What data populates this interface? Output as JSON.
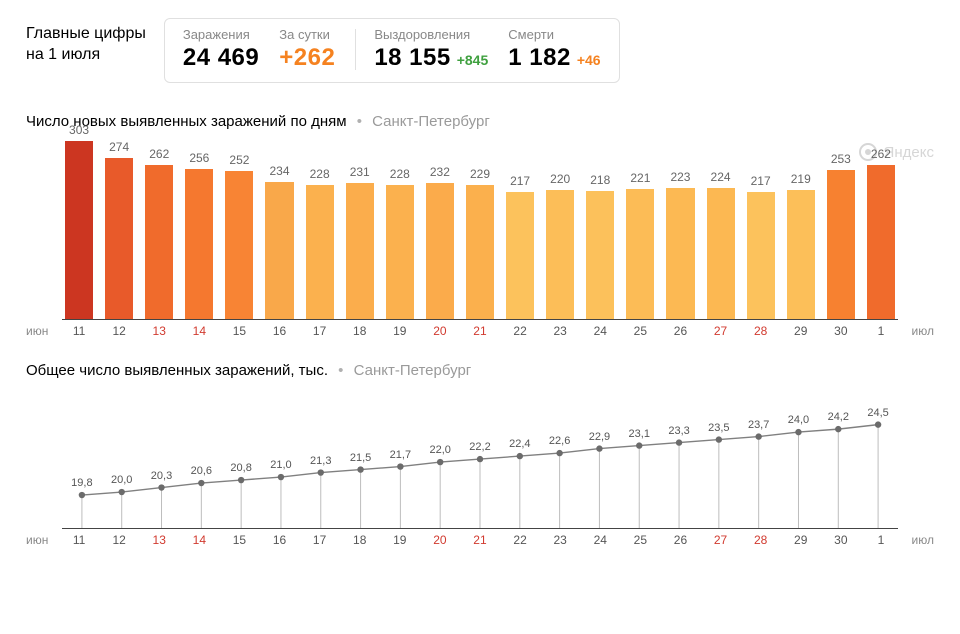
{
  "header": {
    "title_line1": "Главные цифры",
    "title_line2": "на 1 июля",
    "stats": {
      "infections": {
        "label": "Заражения",
        "value": "24 469"
      },
      "daily": {
        "label": "За сутки",
        "value": "+262",
        "color": "#f58220"
      },
      "recoveries": {
        "label": "Выздоровления",
        "value": "18 155",
        "delta": "+845",
        "delta_color": "#3fa03f"
      },
      "deaths": {
        "label": "Смерти",
        "value": "1 182",
        "delta": "+46",
        "delta_color": "#f58220"
      }
    }
  },
  "watermark": {
    "text": "Яндекс"
  },
  "bar_chart": {
    "type": "bar",
    "title": "Число новых выявленных заражений по дням",
    "subtitle": "Санкт-Петербург",
    "month_left": "июн",
    "month_right": "июл",
    "ymax": 310,
    "label_fontsize": 12,
    "bar_gap": 6,
    "background": "#ffffff",
    "axis_color": "#444444",
    "bars": [
      {
        "day": "11",
        "value": 303,
        "color": "#cc3621",
        "weekend": false
      },
      {
        "day": "12",
        "value": 274,
        "color": "#e85a2a",
        "weekend": false
      },
      {
        "day": "13",
        "value": 262,
        "color": "#f06b2c",
        "weekend": true
      },
      {
        "day": "14",
        "value": 256,
        "color": "#f5782f",
        "weekend": true
      },
      {
        "day": "15",
        "value": 252,
        "color": "#f88434",
        "weekend": false
      },
      {
        "day": "16",
        "value": 234,
        "color": "#f9a84a",
        "weekend": false
      },
      {
        "day": "17",
        "value": 228,
        "color": "#fbb14e",
        "weekend": false
      },
      {
        "day": "18",
        "value": 231,
        "color": "#fbad4c",
        "weekend": false
      },
      {
        "day": "19",
        "value": 228,
        "color": "#fbb14e",
        "weekend": false
      },
      {
        "day": "20",
        "value": 232,
        "color": "#fbab4b",
        "weekend": true
      },
      {
        "day": "21",
        "value": 229,
        "color": "#fbb04d",
        "weekend": true
      },
      {
        "day": "22",
        "value": 217,
        "color": "#fcc25c",
        "weekend": false
      },
      {
        "day": "23",
        "value": 220,
        "color": "#fcbe58",
        "weekend": false
      },
      {
        "day": "24",
        "value": 218,
        "color": "#fcc15b",
        "weekend": false
      },
      {
        "day": "25",
        "value": 221,
        "color": "#fcbc56",
        "weekend": false
      },
      {
        "day": "26",
        "value": 223,
        "color": "#fcb953",
        "weekend": false
      },
      {
        "day": "27",
        "value": 224,
        "color": "#fcb852",
        "weekend": true
      },
      {
        "day": "28",
        "value": 217,
        "color": "#fcc25c",
        "weekend": true
      },
      {
        "day": "29",
        "value": 219,
        "color": "#fcbf59",
        "weekend": false
      },
      {
        "day": "30",
        "value": 253,
        "color": "#f78130",
        "weekend": false
      },
      {
        "day": "1",
        "value": 262,
        "color": "#f06b2c",
        "weekend": false
      }
    ]
  },
  "line_chart": {
    "type": "line",
    "title": "Общее число выявленных заражений, тыс.",
    "subtitle": "Санкт-Петербург",
    "month_left": "июн",
    "month_right": "июл",
    "ymin": 18.0,
    "ymax": 26.0,
    "line_color": "#808080",
    "marker_color": "#6b6b6b",
    "marker_radius": 3.2,
    "line_width": 1.4,
    "stem_color": "#bdbdbd",
    "stem_width": 1,
    "label_fontsize": 11,
    "points": [
      {
        "day": "11",
        "value": 19.8,
        "label": "19,8",
        "weekend": false
      },
      {
        "day": "12",
        "value": 20.0,
        "label": "20,0",
        "weekend": false
      },
      {
        "day": "13",
        "value": 20.3,
        "label": "20,3",
        "weekend": true
      },
      {
        "day": "14",
        "value": 20.6,
        "label": "20,6",
        "weekend": true
      },
      {
        "day": "15",
        "value": 20.8,
        "label": "20,8",
        "weekend": false
      },
      {
        "day": "16",
        "value": 21.0,
        "label": "21,0",
        "weekend": false
      },
      {
        "day": "17",
        "value": 21.3,
        "label": "21,3",
        "weekend": false
      },
      {
        "day": "18",
        "value": 21.5,
        "label": "21,5",
        "weekend": false
      },
      {
        "day": "19",
        "value": 21.7,
        "label": "21,7",
        "weekend": false
      },
      {
        "day": "20",
        "value": 22.0,
        "label": "22,0",
        "weekend": true
      },
      {
        "day": "21",
        "value": 22.2,
        "label": "22,2",
        "weekend": true
      },
      {
        "day": "22",
        "value": 22.4,
        "label": "22,4",
        "weekend": false
      },
      {
        "day": "23",
        "value": 22.6,
        "label": "22,6",
        "weekend": false
      },
      {
        "day": "24",
        "value": 22.9,
        "label": "22,9",
        "weekend": false
      },
      {
        "day": "25",
        "value": 23.1,
        "label": "23,1",
        "weekend": false
      },
      {
        "day": "26",
        "value": 23.3,
        "label": "23,3",
        "weekend": false
      },
      {
        "day": "27",
        "value": 23.5,
        "label": "23,5",
        "weekend": true
      },
      {
        "day": "28",
        "value": 23.7,
        "label": "23,7",
        "weekend": true
      },
      {
        "day": "29",
        "value": 24.0,
        "label": "24,0",
        "weekend": false
      },
      {
        "day": "30",
        "value": 24.2,
        "label": "24,2",
        "weekend": false
      },
      {
        "day": "1",
        "value": 24.5,
        "label": "24,5",
        "weekend": false
      }
    ]
  }
}
